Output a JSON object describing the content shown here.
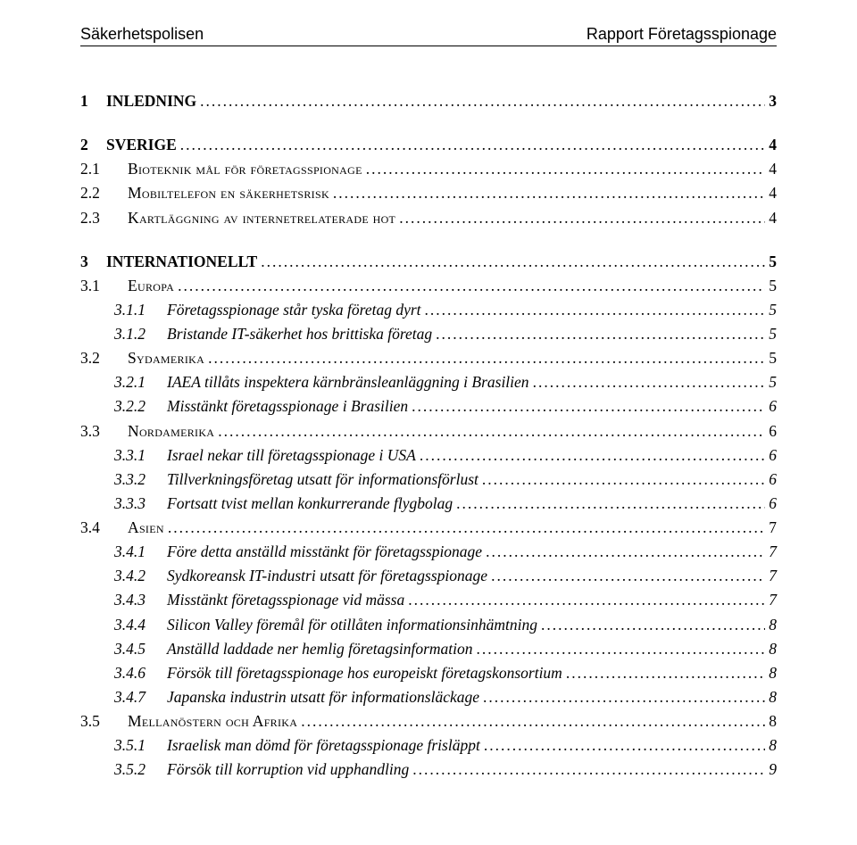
{
  "header": {
    "left": "Säkerhetspolisen",
    "right": "Rapport Företagsspionage"
  },
  "toc": [
    {
      "level": 1,
      "num": "1",
      "label": "INLEDNING",
      "page": "3"
    },
    {
      "level": 1,
      "num": "2",
      "label": "SVERIGE",
      "page": "4"
    },
    {
      "level": 2,
      "num": "2.1",
      "labelSC": "Bioteknik mål för företagsspionage",
      "page": "4"
    },
    {
      "level": 2,
      "num": "2.2",
      "labelSC": "Mobiltelefon en säkerhetsrisk",
      "page": "4"
    },
    {
      "level": 2,
      "num": "2.3",
      "labelSC": "Kartläggning av internetrelaterade hot",
      "page": "4"
    },
    {
      "level": 1,
      "num": "3",
      "label": "INTERNATIONELLT",
      "page": "5"
    },
    {
      "level": 2,
      "num": "3.1",
      "labelSC": "Europa",
      "page": "5"
    },
    {
      "level": 3,
      "num": "3.1.1",
      "label": "Företagsspionage står tyska företag dyrt",
      "page": "5"
    },
    {
      "level": 3,
      "num": "3.1.2",
      "label": "Bristande IT-säkerhet hos brittiska företag",
      "page": "5"
    },
    {
      "level": 2,
      "num": "3.2",
      "labelSC": "Sydamerika",
      "page": "5"
    },
    {
      "level": 3,
      "num": "3.2.1",
      "label": "IAEA tillåts inspektera kärnbränsleanläggning i Brasilien",
      "page": "5"
    },
    {
      "level": 3,
      "num": "3.2.2",
      "label": "Misstänkt företagsspionage i Brasilien",
      "page": "6"
    },
    {
      "level": 2,
      "num": "3.3",
      "labelSC": "Nordamerika",
      "page": "6"
    },
    {
      "level": 3,
      "num": "3.3.1",
      "label": "Israel nekar till företagsspionage i USA",
      "page": "6"
    },
    {
      "level": 3,
      "num": "3.3.2",
      "label": "Tillverkningsföretag utsatt för informationsförlust",
      "page": "6"
    },
    {
      "level": 3,
      "num": "3.3.3",
      "label": "Fortsatt tvist mellan konkurrerande flygbolag",
      "page": "6"
    },
    {
      "level": 2,
      "num": "3.4",
      "labelSC": "Asien",
      "page": "7"
    },
    {
      "level": 3,
      "num": "3.4.1",
      "label": "Före detta anställd misstänkt för företagsspionage",
      "page": "7"
    },
    {
      "level": 3,
      "num": "3.4.2",
      "label": "Sydkoreansk IT-industri utsatt för företagsspionage",
      "page": "7"
    },
    {
      "level": 3,
      "num": "3.4.3",
      "label": "Misstänkt företagsspionage vid mässa",
      "page": "7"
    },
    {
      "level": 3,
      "num": "3.4.4",
      "label": "Silicon Valley föremål för otillåten informationsinhämtning",
      "page": "8"
    },
    {
      "level": 3,
      "num": "3.4.5",
      "label": "Anställd laddade ner hemlig företagsinformation",
      "page": "8"
    },
    {
      "level": 3,
      "num": "3.4.6",
      "label": "Försök till företagsspionage hos europeiskt företagskonsortium",
      "page": "8"
    },
    {
      "level": 3,
      "num": "3.4.7",
      "label": "Japanska industrin utsatt för informationsläckage",
      "page": "8"
    },
    {
      "level": 2,
      "num": "3.5",
      "labelSC": "Mellanöstern och Afrika",
      "page": "8"
    },
    {
      "level": 3,
      "num": "3.5.1",
      "label": "Israelisk man dömd för företagsspionage frisläppt",
      "page": "8"
    },
    {
      "level": 3,
      "num": "3.5.2",
      "label": "Försök till korruption vid upphandling",
      "page": "9"
    }
  ]
}
